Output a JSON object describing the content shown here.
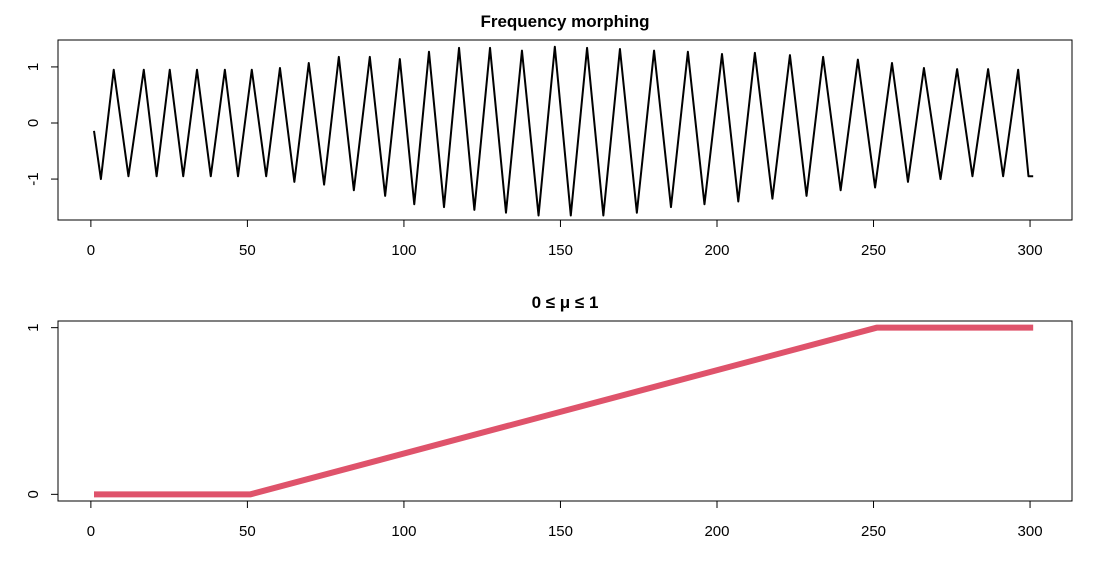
{
  "chart_data": [
    {
      "type": "line",
      "title": "Frequency morphing",
      "color": "#000000",
      "x": [
        1,
        3.2,
        7.3,
        12,
        16.9,
        21,
        25.2,
        29.5,
        33.9,
        38.3,
        42.8,
        47,
        51.4,
        56,
        60.4,
        65,
        69.6,
        74.5,
        79.2,
        84,
        89.1,
        94,
        98.7,
        103.3,
        108,
        112.8,
        117.6,
        122.5,
        127.5,
        132.6,
        137.7,
        143,
        148.2,
        153.3,
        158.5,
        163.7,
        169,
        174.4,
        179.9,
        185.3,
        190.7,
        196,
        201.6,
        206.8,
        212.1,
        217.7,
        223.3,
        228.6,
        233.9,
        239.5,
        245,
        250.5,
        255.9,
        261,
        266.1,
        271.4,
        276.7,
        281.6,
        286.6,
        291.4,
        296.2,
        299.5,
        301
      ],
      "values": [
        -0.14,
        -1.0,
        0.95,
        -0.95,
        0.95,
        -0.95,
        0.95,
        -0.95,
        0.95,
        -0.95,
        0.95,
        -0.95,
        0.95,
        -0.95,
        0.98,
        -1.05,
        1.07,
        -1.1,
        1.18,
        -1.2,
        1.18,
        -1.3,
        1.14,
        -1.45,
        1.27,
        -1.5,
        1.34,
        -1.55,
        1.34,
        -1.6,
        1.29,
        -1.65,
        1.36,
        -1.65,
        1.34,
        -1.65,
        1.32,
        -1.6,
        1.29,
        -1.5,
        1.27,
        -1.45,
        1.23,
        -1.4,
        1.25,
        -1.35,
        1.21,
        -1.3,
        1.18,
        -1.2,
        1.13,
        -1.15,
        1.07,
        -1.05,
        0.98,
        -1.0,
        0.96,
        -0.95,
        0.96,
        -0.95,
        0.95,
        -0.95,
        -0.95
      ],
      "xlim": [
        -10.5,
        313.4
      ],
      "xticks": [
        0,
        50,
        100,
        150,
        200,
        250,
        300
      ],
      "ylim": [
        -1.73,
        1.48
      ],
      "yticks": [
        -1,
        0,
        1
      ]
    },
    {
      "type": "line",
      "title": "0 ≤ μ ≤ 1",
      "color": "#df536b",
      "x": [
        1,
        51,
        251,
        301
      ],
      "values": [
        0,
        0,
        1,
        1
      ],
      "xlim": [
        -10.5,
        313.4
      ],
      "xticks": [
        0,
        50,
        100,
        150,
        200,
        250,
        300
      ],
      "ylim": [
        -0.04,
        1.04
      ],
      "yticks": [
        0,
        1
      ]
    }
  ]
}
